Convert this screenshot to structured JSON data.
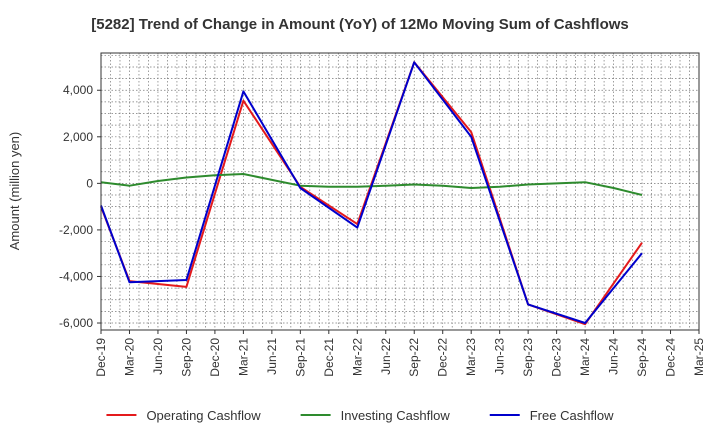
{
  "chart_data": {
    "type": "line",
    "title": "[5282]  Trend of Change in Amount (YoY) of 12Mo Moving Sum of Cashflows",
    "xlabel": "",
    "ylabel": "Amount (million yen)",
    "ylim": [
      -6300,
      5600
    ],
    "yticks": [
      -6000,
      -4000,
      -2000,
      0,
      2000,
      4000
    ],
    "ytick_labels": [
      "-6,000",
      "-4,000",
      "-2,000",
      "0",
      "2,000",
      "4,000"
    ],
    "categories": [
      "Dec-19",
      "Mar-20",
      "Jun-20",
      "Sep-20",
      "Dec-20",
      "Mar-21",
      "Jun-21",
      "Sep-21",
      "Dec-21",
      "Mar-22",
      "Jun-22",
      "Sep-22",
      "Dec-22",
      "Mar-23",
      "Jun-23",
      "Sep-23",
      "Dec-23",
      "Mar-24",
      "Jun-24",
      "Sep-24",
      "Dec-24",
      "Mar-25"
    ],
    "tick_labels": [
      "Dec-19",
      "Mar-20",
      "Jun-20",
      "Sep-20",
      "Dec-20",
      "Mar-21",
      "Jun-21",
      "Sep-21",
      "Dec-21",
      "Mar-22",
      "Jun-22",
      "Sep-22",
      "Dec-22",
      "Mar-23",
      "Jun-23",
      "Sep-23",
      "Dec-23",
      "Mar-24",
      "Jun-24",
      "Sep-24",
      "Dec-24",
      "Mar-25"
    ],
    "grid": true,
    "legend_position": "bottom",
    "series": [
      {
        "name": "Operating Cashflow",
        "color": "#e41a1c",
        "x": [
          0,
          1,
          3,
          5,
          7,
          9,
          11,
          13,
          15,
          17,
          19
        ],
        "values": [
          -1000,
          -4200,
          -4450,
          3550,
          -150,
          -1750,
          5200,
          2200,
          -5200,
          -6050,
          -2550
        ]
      },
      {
        "name": "Investing Cashflow",
        "color": "#2e8b2e",
        "x": [
          0,
          1,
          2,
          3,
          4,
          5,
          6,
          7,
          8,
          9,
          10,
          11,
          12,
          13,
          14,
          15,
          16,
          17,
          18,
          19
        ],
        "values": [
          50,
          -100,
          100,
          250,
          350,
          400,
          150,
          -100,
          -150,
          -150,
          -100,
          -50,
          -100,
          -200,
          -150,
          -50,
          0,
          50,
          -200,
          -500
        ]
      },
      {
        "name": "Free Cashflow",
        "color": "#0000cc",
        "x": [
          0,
          1,
          3,
          5,
          7,
          9,
          11,
          13,
          15,
          17,
          19
        ],
        "values": [
          -950,
          -4250,
          -4150,
          3950,
          -200,
          -1900,
          5200,
          2000,
          -5200,
          -6000,
          -3000
        ]
      }
    ]
  }
}
